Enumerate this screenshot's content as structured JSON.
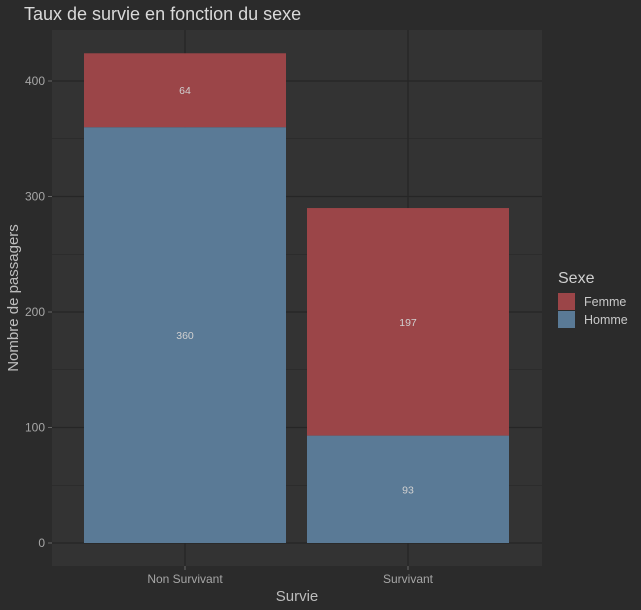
{
  "chart_data": {
    "type": "bar",
    "stacked": true,
    "title": "Taux de survie en fonction du sexe",
    "xlabel": "Survie",
    "ylabel": "Nombre de passagers",
    "categories": [
      "Non Survivant",
      "Survivant"
    ],
    "series": [
      {
        "name": "Homme",
        "values": [
          360,
          93
        ],
        "color": "#5a7a96"
      },
      {
        "name": "Femme",
        "values": [
          64,
          197
        ],
        "color": "#9b4548"
      }
    ],
    "yticks": [
      0,
      100,
      200,
      300,
      400
    ],
    "ylim": [
      0,
      440
    ],
    "grid": true,
    "legend": {
      "title": "Sexe",
      "position": "right",
      "order": [
        "Femme",
        "Homme"
      ]
    },
    "background": "#2b2b2b",
    "panel_color": "#333333",
    "grid_color": "#262626"
  }
}
